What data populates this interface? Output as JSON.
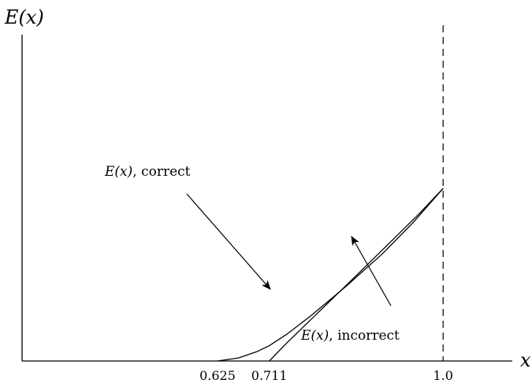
{
  "chart_data": {
    "type": "line",
    "ylabel": "E(x)",
    "xlabel": "x",
    "xlim": [
      0.3,
      1.115
    ],
    "ylim": [
      0,
      0.745
    ],
    "x_ticks": [
      {
        "value": 0.625,
        "label": "0.625"
      },
      {
        "value": 0.711,
        "label": "0.711"
      },
      {
        "value": 1.0,
        "label": "1.0"
      }
    ],
    "vertical_reference": {
      "x": 1.0,
      "style": "dashed"
    },
    "series": [
      {
        "name": "E(x), correct",
        "points": [
          [
            0.625,
            0.0
          ],
          [
            0.66,
            0.007
          ],
          [
            0.69,
            0.021
          ],
          [
            0.711,
            0.035
          ],
          [
            0.74,
            0.061
          ],
          [
            0.78,
            0.103
          ],
          [
            0.84,
            0.172
          ],
          [
            0.9,
            0.246
          ],
          [
            0.95,
            0.316
          ],
          [
            1.0,
            0.394
          ]
        ]
      },
      {
        "name": "E(x), incorrect",
        "points": [
          [
            0.711,
            0.0
          ],
          [
            0.74,
            0.041
          ],
          [
            0.8,
            0.121
          ],
          [
            0.86,
            0.201
          ],
          [
            0.92,
            0.282
          ],
          [
            0.96,
            0.336
          ],
          [
            1.0,
            0.394
          ]
        ]
      }
    ],
    "annotations": [
      {
        "math": "E(x)",
        "text": ", correct",
        "points_to": "E(x), correct"
      },
      {
        "math": "E(x)",
        "text": ", incorrect",
        "points_to": "E(x), incorrect"
      }
    ],
    "grid": false,
    "legend": "none"
  }
}
